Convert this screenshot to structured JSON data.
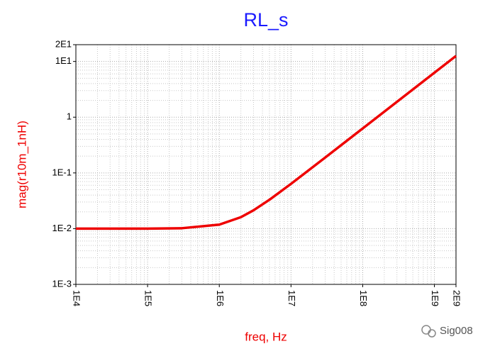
{
  "chart_data": {
    "type": "line",
    "title": "RL_s",
    "xlabel": "freq, Hz",
    "ylabel": "mag(r10m_1nH)",
    "x": [
      10000,
      100000,
      300000,
      1000000,
      2000000,
      3000000,
      5000000,
      10000000,
      30000000,
      100000000,
      1000000000,
      2000000000
    ],
    "values": [
      0.01,
      0.01002,
      0.010176,
      0.01181,
      0.01606,
      0.02134,
      0.03297,
      0.06362,
      0.1888,
      0.6284,
      6.283,
      12.566
    ],
    "color": "#ee0000",
    "x_scale": "log",
    "y_scale": "log",
    "grid": true,
    "xlim": [
      10000,
      2000000000
    ],
    "xticks": [
      {
        "value": 10000,
        "label": "1E4"
      },
      {
        "value": 100000,
        "label": "1E5"
      },
      {
        "value": 1000000,
        "label": "1E6"
      },
      {
        "value": 10000000,
        "label": "1E7"
      },
      {
        "value": 100000000,
        "label": "1E8"
      },
      {
        "value": 1000000000,
        "label": "1E9"
      },
      {
        "value": 2000000000,
        "label": "2E9"
      }
    ],
    "ylim": [
      0.001,
      20
    ],
    "yticks": [
      {
        "value": 0.001,
        "label": "1E-3"
      },
      {
        "value": 0.01,
        "label": "1E-2"
      },
      {
        "value": 0.1,
        "label": "1E-1"
      },
      1,
      {
        "value": 10,
        "label": "1E1"
      },
      {
        "value": 20,
        "label": "2E1"
      }
    ],
    "watermark": "Sig008"
  }
}
